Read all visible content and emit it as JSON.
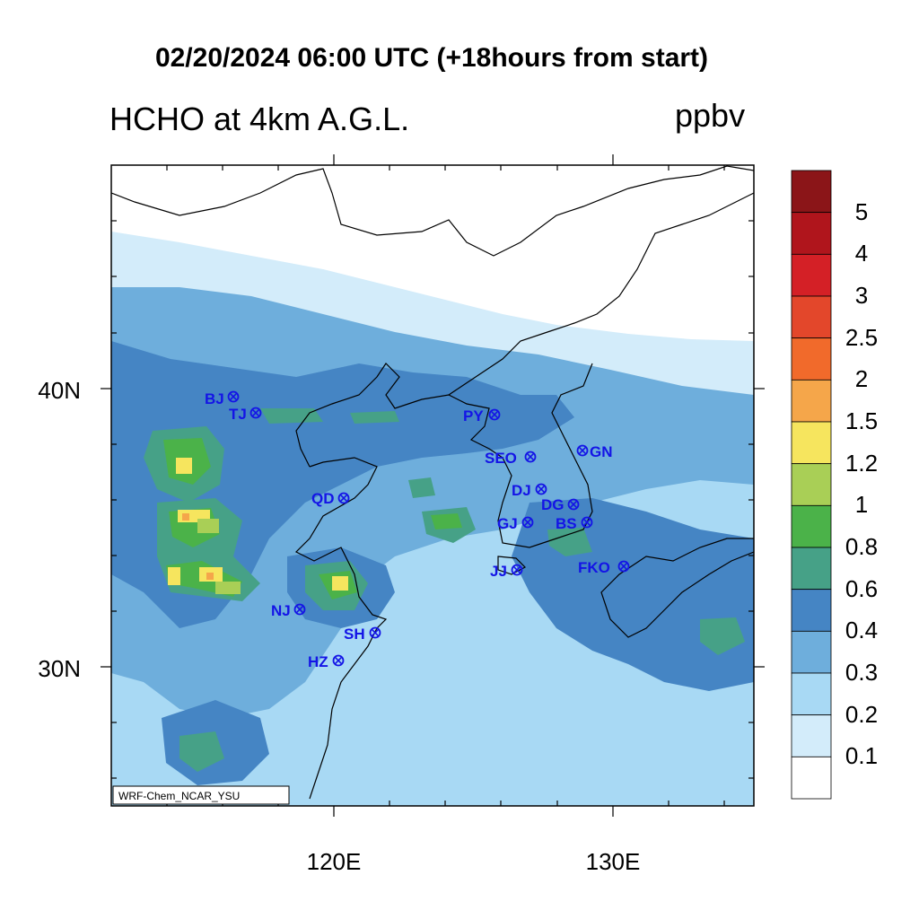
{
  "title": "02/20/2024 06:00 UTC (+18hours from start)",
  "left_title": "HCHO at 4km A.G.L.",
  "right_title": "ppbv",
  "lat_labels": [
    "40N",
    "30N"
  ],
  "lon_labels": [
    "120E",
    "130E"
  ],
  "credit": "WRF-Chem_NCAR_YSU",
  "colorbar": {
    "labels": [
      "5",
      "4",
      "3",
      "2.5",
      "2",
      "1.5",
      "1.2",
      "1",
      "0.8",
      "0.6",
      "0.4",
      "0.3",
      "0.2",
      "0.1"
    ],
    "colors": [
      "#8b1518",
      "#b0151c",
      "#d42026",
      "#e3472b",
      "#f16a2b",
      "#f5a64a",
      "#f6e55e",
      "#a9cf56",
      "#4bb249",
      "#46a187",
      "#4585c4",
      "#6eaedc",
      "#a8d9f4",
      "#d3ecfa",
      "#ffffff"
    ]
  },
  "stations": [
    {
      "name": "BJ"
    },
    {
      "name": "TJ"
    },
    {
      "name": "PY"
    },
    {
      "name": "SEO"
    },
    {
      "name": "GN"
    },
    {
      "name": "QD"
    },
    {
      "name": "DJ"
    },
    {
      "name": "DG"
    },
    {
      "name": "GJ"
    },
    {
      "name": "BS"
    },
    {
      "name": "JJ"
    },
    {
      "name": "FKO"
    },
    {
      "name": "NJ"
    },
    {
      "name": "SH"
    },
    {
      "name": "HZ"
    }
  ]
}
